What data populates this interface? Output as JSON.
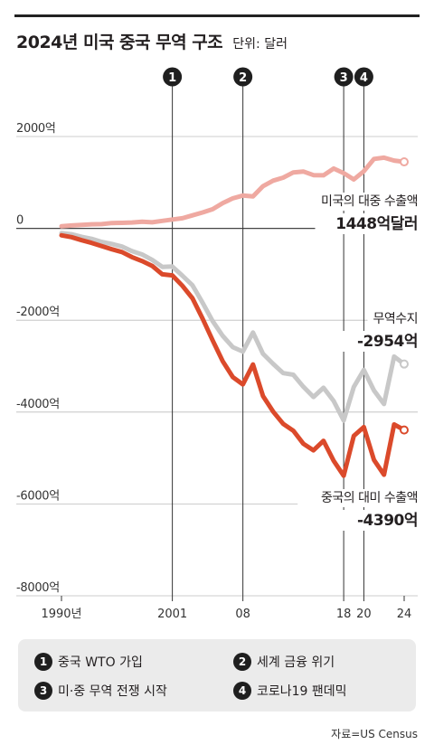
{
  "title": "2024년 미국 중국 무역 구조",
  "unit": "단위: 달러",
  "source": "자료=US Census",
  "colors": {
    "us_exports": "#efa9a1",
    "balance": "#c8c8c8",
    "china_exports": "#db4a2b",
    "marker": "#1f1f1f",
    "grid": "#bcbcbc"
  },
  "legend": [
    {
      "num": "1",
      "label": "중국 WTO 가입"
    },
    {
      "num": "2",
      "label": "세계 금융 위기"
    },
    {
      "num": "3",
      "label": "미·중 무역 전쟁 시작"
    },
    {
      "num": "4",
      "label": "코로나19 팬데믹"
    }
  ],
  "annotations": {
    "us_exports_label": "미국의 대중 수출액",
    "us_exports_value": "1448억달러",
    "balance_label": "무역수지",
    "balance_value": "-2954억",
    "china_exports_label": "중국의 대미 수출액",
    "china_exports_value": "-4390억"
  },
  "chart_data": {
    "type": "line",
    "title": "2024년 미국 중국 무역 구조",
    "unit": "단위: 달러",
    "xlim": [
      1990,
      2024
    ],
    "ylim": [
      -8000,
      2000
    ],
    "x_ticks": [
      {
        "value": 1990,
        "label": "1990년"
      },
      {
        "value": 2001,
        "label": "2001"
      },
      {
        "value": 2008,
        "label": "08"
      },
      {
        "value": 2018,
        "label": "18"
      },
      {
        "value": 2020,
        "label": "20"
      },
      {
        "value": 2024,
        "label": "24"
      }
    ],
    "y_ticks": [
      {
        "value": 2000,
        "label": "2000억"
      },
      {
        "value": 0,
        "label": "0"
      },
      {
        "value": -2000,
        "label": "-2000억"
      },
      {
        "value": -4000,
        "label": "-4000억"
      },
      {
        "value": -6000,
        "label": "-6000억"
      },
      {
        "value": -8000,
        "label": "-8000억"
      }
    ],
    "markers": [
      {
        "num": "1",
        "year": 2001
      },
      {
        "num": "2",
        "year": 2008
      },
      {
        "num": "3",
        "year": 2018
      },
      {
        "num": "4",
        "year": 2020
      }
    ],
    "x": [
      1990,
      1991,
      1992,
      1993,
      1994,
      1995,
      1996,
      1997,
      1998,
      1999,
      2000,
      2001,
      2002,
      2003,
      2004,
      2005,
      2006,
      2007,
      2008,
      2009,
      2010,
      2011,
      2012,
      2013,
      2014,
      2015,
      2016,
      2017,
      2018,
      2019,
      2020,
      2021,
      2022,
      2023,
      2024
    ],
    "series": [
      {
        "key": "us_exports",
        "name": "미국의 대중 수출액",
        "values": [
          48,
          63,
          75,
          88,
          93,
          117,
          120,
          128,
          143,
          131,
          163,
          192,
          221,
          284,
          347,
          418,
          552,
          653,
          714,
          695,
          919,
          1039,
          1105,
          1219,
          1239,
          1160,
          1155,
          1303,
          1202,
          1065,
          1245,
          1511,
          1540,
          1477,
          1448
        ]
      },
      {
        "key": "balance",
        "name": "무역수지",
        "values": [
          -104,
          -127,
          -183,
          -228,
          -295,
          -338,
          -395,
          -497,
          -569,
          -686,
          -838,
          -831,
          -1031,
          -1240,
          -1620,
          -2020,
          -2343,
          -2586,
          -2683,
          -2268,
          -2732,
          -2951,
          -3151,
          -3187,
          -3449,
          -3672,
          -3470,
          -3757,
          -4183,
          -3452,
          -3082,
          -3530,
          -3825,
          -2792,
          -2954
        ]
      },
      {
        "key": "china_exports",
        "name": "중국의 대미 수출액",
        "values": [
          -152,
          -190,
          -258,
          -316,
          -388,
          -455,
          -515,
          -625,
          -712,
          -817,
          -1000,
          -1023,
          -1252,
          -1524,
          -1967,
          -2438,
          -2895,
          -3239,
          -3397,
          -2963,
          -3651,
          -3990,
          -4256,
          -4406,
          -4688,
          -4832,
          -4625,
          -5060,
          -5385,
          -4517,
          -4327,
          -5041,
          -5365,
          -4269,
          -4390
        ]
      }
    ]
  }
}
